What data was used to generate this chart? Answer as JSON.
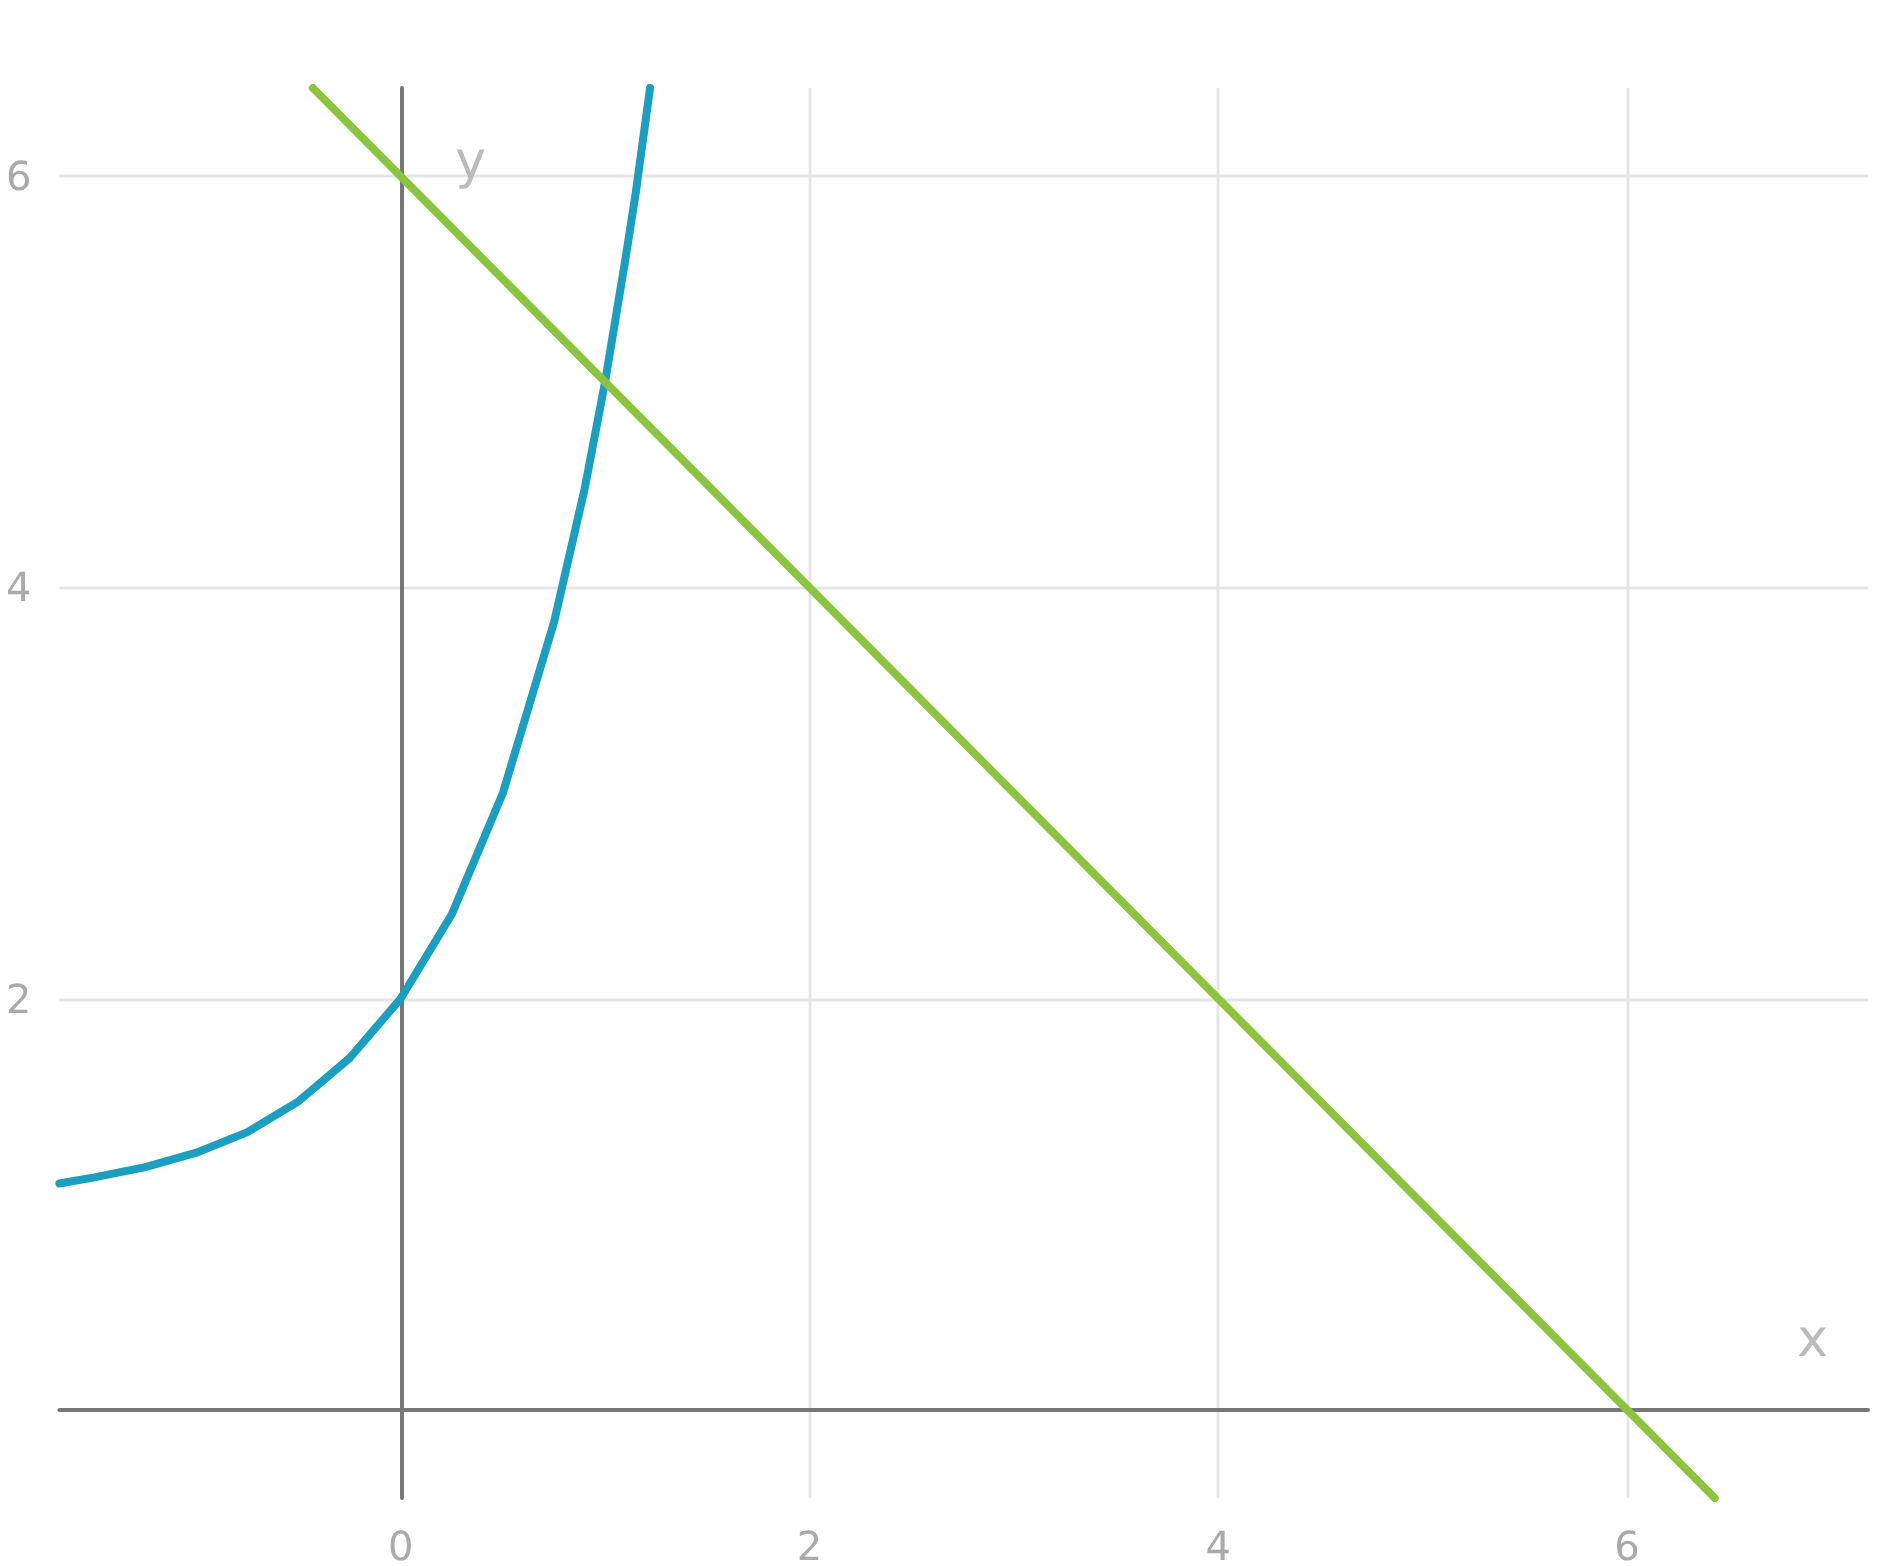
{
  "chart_data": {
    "type": "line",
    "xlabel": "x",
    "ylabel": "y",
    "xlim": [
      -1.67,
      7.18
    ],
    "ylim": [
      -0.43,
      6.43
    ],
    "xticks": [
      0,
      2,
      4,
      6
    ],
    "yticks": [
      {
        "value": 0,
        "label": null
      },
      2,
      4,
      6
    ],
    "grid": true,
    "marker": "none",
    "line_style": "solid",
    "series": [
      {
        "color": "#1b9ebf",
        "x": [
          -1.67,
          -1.5,
          -1.25,
          -1,
          -0.75,
          -0.5,
          -0.25,
          0,
          0.25,
          0.5,
          0.75,
          0.9,
          1,
          1.1,
          1.15,
          1.22
        ],
        "values": [
          1.1,
          1.13,
          1.18,
          1.25,
          1.35,
          1.5,
          1.71,
          2,
          2.41,
          3,
          3.83,
          4.48,
          5,
          5.6,
          5.92,
          6.43
        ]
      },
      {
        "color": "#8cc43f",
        "x": [
          -0.43,
          6.43
        ],
        "values": [
          6.43,
          -0.43
        ]
      }
    ]
  }
}
